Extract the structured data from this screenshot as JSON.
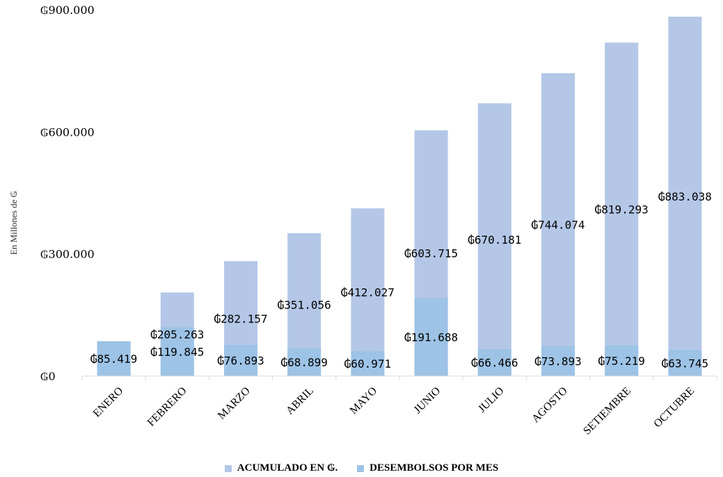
{
  "chart_data": {
    "type": "bar",
    "ylabel": "En Millones de ₲",
    "ylim": [
      0,
      900000
    ],
    "yticks": [
      0,
      300000,
      600000,
      900000
    ],
    "ytick_labels": [
      "₲0",
      "₲300.000",
      "₲600.000",
      "₲900.000"
    ],
    "categories": [
      "ENERO",
      "FEBRERO",
      "MARZO",
      "ABRIL",
      "MAYO",
      "JUNIO",
      "JULIO",
      "AGOSTO",
      "SETIEMBRE",
      "OCTUBRE"
    ],
    "series": [
      {
        "name": "ACUMULADO EN ₲.",
        "color": "#b4c7e7",
        "values": [
          85419,
          205263,
          282157,
          351056,
          412027,
          603715,
          670181,
          744074,
          819293,
          883038
        ],
        "labels": [
          "",
          "₲205.263",
          "₲282.157",
          "₲351.056",
          "₲412.027",
          "₲603.715",
          "₲670.181",
          "₲744.074",
          "₲819.293",
          "₲883.038"
        ]
      },
      {
        "name": "DESEMBOLSOS POR MES",
        "color": "#9dc3e6",
        "values": [
          85419,
          119845,
          76893,
          68899,
          60971,
          191688,
          66466,
          73893,
          75219,
          63745
        ],
        "labels": [
          "₲85.419",
          "₲119.845",
          "₲76.893",
          "₲68.899",
          "₲60.971",
          "₲191.688",
          "₲66.466",
          "₲73.893",
          "₲75.219",
          "₲63.745"
        ]
      }
    ],
    "legend_position": "bottom",
    "grid": false
  }
}
